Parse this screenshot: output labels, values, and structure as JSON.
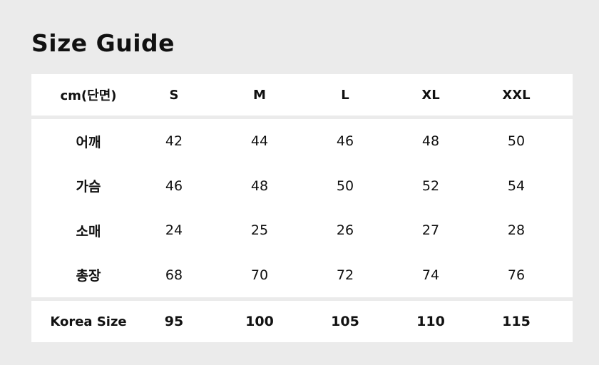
{
  "title": "Size Guide",
  "table": {
    "header": [
      "cm(단면)",
      "S",
      "M",
      "L",
      "XL",
      "XXL"
    ],
    "rows": [
      {
        "label": "어깨",
        "values": [
          "42",
          "44",
          "46",
          "48",
          "50"
        ]
      },
      {
        "label": "가슴",
        "values": [
          "46",
          "48",
          "50",
          "52",
          "54"
        ]
      },
      {
        "label": "소매",
        "values": [
          "24",
          "25",
          "26",
          "27",
          "28"
        ]
      },
      {
        "label": "총장",
        "values": [
          "68",
          "70",
          "72",
          "74",
          "76"
        ]
      }
    ],
    "footer": {
      "label": "Korea Size",
      "values": [
        "95",
        "100",
        "105",
        "110",
        "115"
      ]
    }
  }
}
